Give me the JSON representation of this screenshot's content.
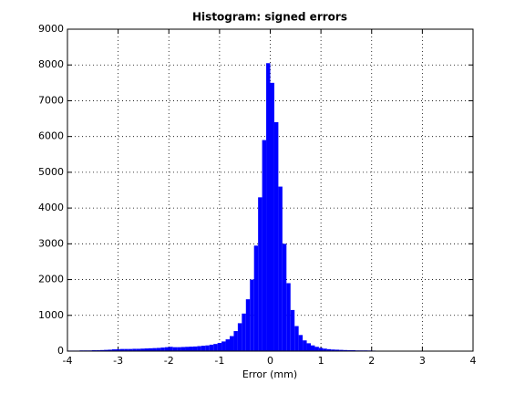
{
  "chart_data": {
    "type": "histogram",
    "title": "Histogram: signed errors",
    "xlabel": "Error (mm)",
    "bins": [
      -4,
      -3.92,
      -3.84,
      -3.76,
      -3.68,
      -3.6,
      -3.52,
      -3.44,
      -3.36,
      -3.28,
      -3.2,
      -3.12,
      -3.04,
      -2.96,
      -2.88,
      -2.8,
      -2.72,
      -2.64,
      -2.56,
      -2.48,
      -2.4,
      -2.32,
      -2.24,
      -2.16,
      -2.08,
      -2,
      -1.92,
      -1.84,
      -1.76,
      -1.68,
      -1.6,
      -1.52,
      -1.44,
      -1.36,
      -1.28,
      -1.2,
      -1.12,
      -1.04,
      -0.96,
      -0.88,
      -0.8,
      -0.72,
      -0.64,
      -0.56,
      -0.48,
      -0.4,
      -0.32,
      -0.24,
      -0.16,
      -0.08,
      0,
      0.08,
      0.16,
      0.24,
      0.32,
      0.4,
      0.48,
      0.56,
      0.64,
      0.72,
      0.8,
      0.88,
      0.96,
      1.04,
      1.12,
      1.2,
      1.28,
      1.36,
      1.44,
      1.52,
      1.6,
      1.68,
      1.76,
      1.84,
      1.92,
      2,
      2.08,
      2.16,
      2.24,
      2.32,
      2.4,
      2.48,
      2.56,
      2.64,
      2.72,
      2.8,
      2.88,
      2.96,
      3.04,
      3.12,
      3.2,
      3.28,
      3.36,
      3.44,
      3.52,
      3.6,
      3.68,
      3.76,
      3.84,
      3.92,
      4
    ],
    "values": [
      15,
      15,
      15,
      20,
      20,
      20,
      25,
      25,
      30,
      35,
      40,
      50,
      55,
      60,
      60,
      60,
      65,
      65,
      70,
      75,
      80,
      85,
      90,
      100,
      110,
      120,
      110,
      110,
      115,
      120,
      125,
      130,
      140,
      150,
      160,
      180,
      200,
      230,
      270,
      330,
      420,
      560,
      780,
      1050,
      1450,
      2000,
      2950,
      4300,
      5900,
      8050,
      7500,
      6400,
      4600,
      3000,
      1900,
      1150,
      700,
      450,
      300,
      220,
      160,
      120,
      90,
      70,
      55,
      45,
      40,
      35,
      30,
      25,
      25,
      20,
      20,
      20,
      18,
      15,
      10,
      8,
      6,
      5,
      5,
      4,
      4,
      3,
      3,
      2,
      2,
      2,
      2,
      1,
      1,
      1,
      1,
      1,
      0,
      0,
      0,
      0,
      0,
      0
    ],
    "color": "#0000ff",
    "xlim": [
      -4,
      4
    ],
    "xticks": [
      -4,
      -3,
      -2,
      -1,
      0,
      1,
      2,
      3,
      4
    ],
    "ylim": [
      0,
      9000
    ],
    "yticks": [
      0,
      1000,
      2000,
      3000,
      4000,
      5000,
      6000,
      7000,
      8000,
      9000
    ],
    "grid": true
  }
}
